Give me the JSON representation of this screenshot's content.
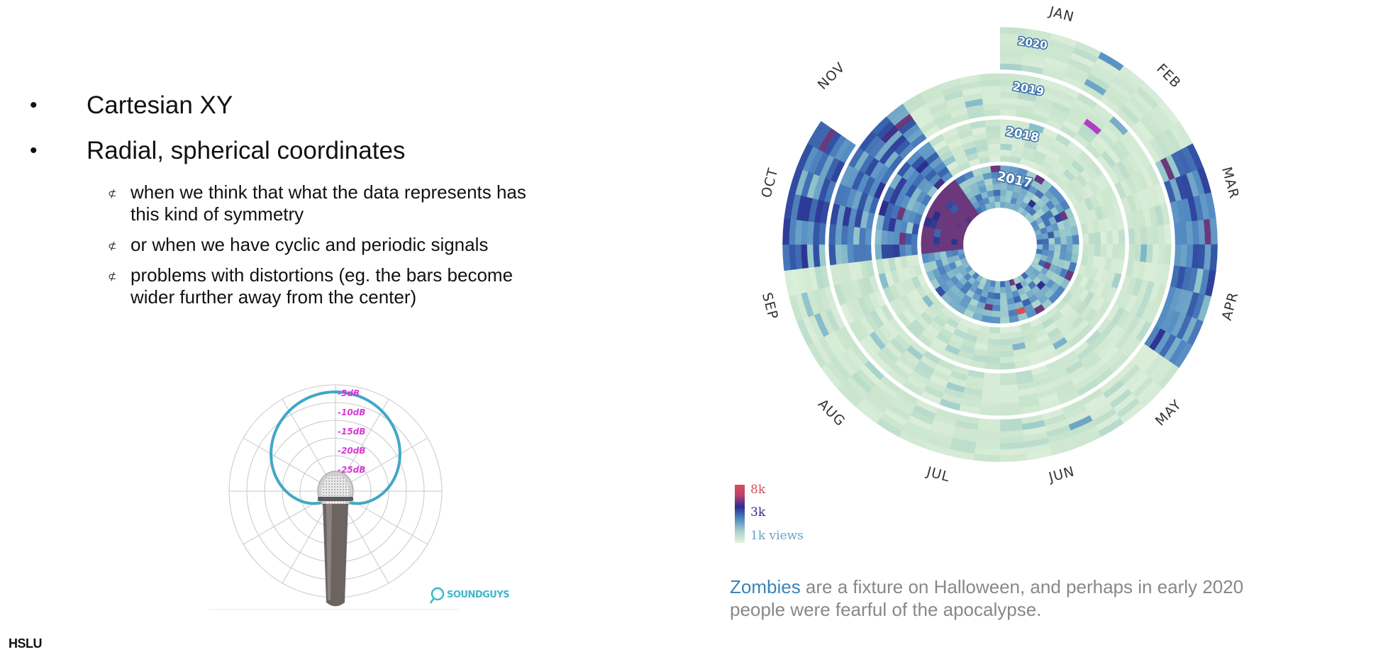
{
  "bullets": [
    {
      "text": "Cartesian XY"
    },
    {
      "text": "Radial, spherical coordinates"
    }
  ],
  "sub_bullets": [
    {
      "lines": [
        "when we think that what the data represents has",
        "this kind of symmetry"
      ]
    },
    {
      "lines": [
        "or when we have cyclic and periodic signals"
      ]
    },
    {
      "lines": [
        "problems with distortions (eg. the bars become",
        "wider further away from the center)"
      ]
    }
  ],
  "bullet_symbol": "•",
  "sub_bullet_symbol": "⊄",
  "footer_logo": "HSLU",
  "polar_pattern": {
    "ring_labels": [
      "-5dB",
      "-10dB",
      "-15dB",
      "-20dB",
      "-25dB"
    ],
    "label_color": "#d63bd6",
    "curve_color": "#3fa8c6",
    "brand": "SOUNDGUYS"
  },
  "radial_chart": {
    "months": [
      "JAN",
      "FEB",
      "MAR",
      "APR",
      "MAY",
      "JUN",
      "JUL",
      "AUG",
      "SEP",
      "OCT",
      "NOV"
    ],
    "years": [
      "2020",
      "2019",
      "2018",
      "2017"
    ],
    "legend": [
      "8k",
      "3k",
      "1k views"
    ],
    "colors": {
      "low": "#e6f3dc",
      "mid": "#4d86bf",
      "high": "#2b2c8e",
      "peak": "#d64f5a",
      "accent": "#b03bc4"
    }
  },
  "caption": {
    "highlight": "Zombies",
    "rest": " are a fixture on Halloween, and perhaps in early 2020 people were fearful of the apocalypse."
  }
}
